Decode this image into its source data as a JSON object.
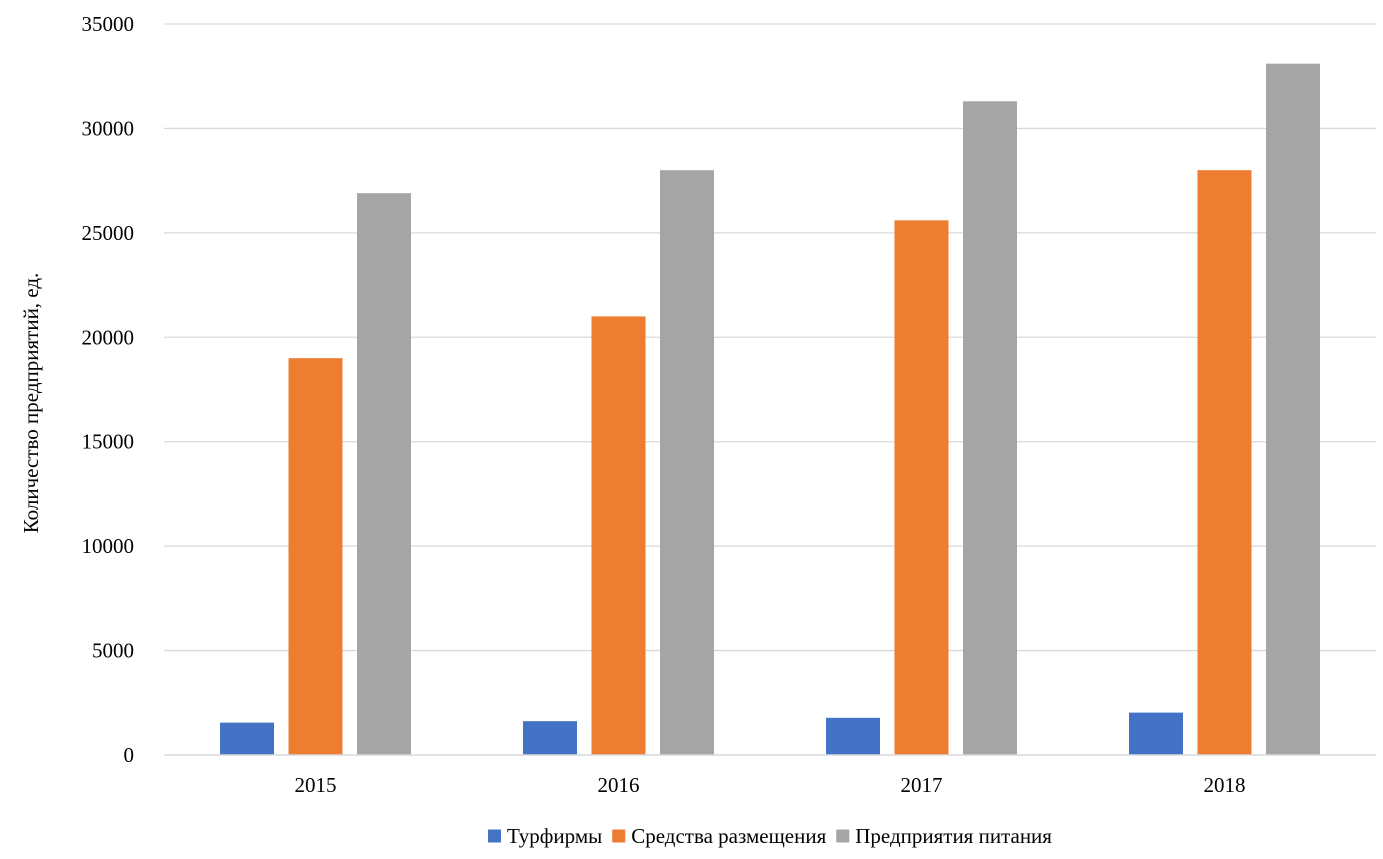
{
  "chart_data": {
    "type": "bar",
    "title": "",
    "xlabel": "",
    "ylabel": "Количество предприятий, ед.",
    "categories": [
      "2015",
      "2016",
      "2017",
      "2018"
    ],
    "ylim": [
      0,
      35000
    ],
    "yticks": [
      0,
      5000,
      10000,
      15000,
      20000,
      25000,
      30000,
      35000
    ],
    "ytick_labels": [
      "0",
      "5000",
      "10000",
      "15000",
      "20000",
      "25000",
      "30000",
      "35000"
    ],
    "grid": true,
    "legend_position": "bottom",
    "series": [
      {
        "name": "Турфирмы",
        "color": "#4472C4",
        "values": [
          1550,
          1620,
          1780,
          2030
        ]
      },
      {
        "name": "Средства размещения",
        "color": "#ED7D31",
        "values": [
          19000,
          21000,
          25600,
          28000
        ]
      },
      {
        "name": "Предприятия питания",
        "color": "#A5A5A5",
        "values": [
          26900,
          28000,
          31300,
          33100
        ]
      }
    ]
  }
}
